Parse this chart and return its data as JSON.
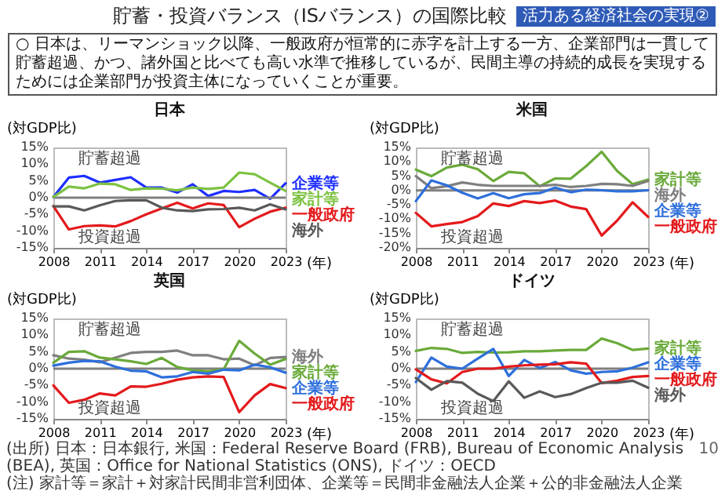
{
  "chart_data": [
    {
      "type": "other",
      "title": "貯蓄・投資バランス（ISバランス）の国際比較",
      "subtitle": "活力ある経済社会の実現②",
      "annotations": [
        "○ 日本は、リーマンショック以降、一般政府が恒常的に赤字を計上する一方、企業部門は一貫して貯蓄超過、かつ、諸外国と比べても高い水準で推移しているが、民間主導の持続的成長を実現するためには企業部門が投資主体になっていくことが重要。",
        "(出所) 日本：日本銀行, 米国：Federal Reserve Board (FRB), Bureau of Economic Analysis (BEA), 英国：Office for National Statistics (ONS), ドイツ：OECD",
        "(注) 家計等＝家計＋対家計民間非営利団体、企業等＝民間非金融法人企業＋公的非金融法人企業",
        "10"
      ]
    },
    {
      "type": "line",
      "title": "日本",
      "ylabel": "(対GDP比)",
      "xlabel": "(年)",
      "x": [
        2008,
        2009,
        2010,
        2011,
        2012,
        2013,
        2014,
        2015,
        2016,
        2017,
        2018,
        2019,
        2020,
        2021,
        2022,
        2023
      ],
      "xlim": [
        2008,
        2023
      ],
      "xticks": [
        2008,
        2011,
        2014,
        2017,
        2020,
        2023
      ],
      "ylim": [
        -15,
        15
      ],
      "yticks": [
        {
          "value": -15,
          "label": "-15%"
        },
        {
          "value": -10,
          "label": "-10%"
        },
        {
          "value": -5,
          "label": "-5%"
        },
        {
          "value": 0,
          "label": "0%"
        },
        {
          "value": 5,
          "label": "5%"
        },
        {
          "value": 10,
          "label": "10%"
        },
        {
          "value": 15,
          "label": "15%"
        }
      ],
      "ref_lines": [
        {
          "axis": "y",
          "value": 0,
          "color": "#808080"
        }
      ],
      "annotations": [
        "貯蓄超過",
        "投資超過"
      ],
      "series": [
        {
          "name": "企業等",
          "color": "#1f2fff",
          "values": [
            0.2,
            6,
            6.5,
            4.5,
            5.3,
            6.1,
            3,
            3,
            1.5,
            4,
            0.5,
            2,
            1.7,
            2.3,
            -0.3,
            4.3
          ]
        },
        {
          "name": "家計等",
          "color": "#7dc242",
          "values": [
            0.2,
            3.3,
            2.8,
            4.2,
            4,
            2.3,
            2.8,
            2.7,
            2.2,
            3,
            2.6,
            3,
            7.5,
            7,
            4.5,
            2
          ]
        },
        {
          "name": "一般政府",
          "color": "#e31a1c",
          "values": [
            -2.5,
            -9.5,
            -8.5,
            -8.3,
            -8.6,
            -7,
            -5,
            -3.2,
            -1.5,
            -3.2,
            -1.7,
            -2.2,
            -8.8,
            -6.3,
            -4.2,
            -3
          ]
        },
        {
          "name": "海外",
          "color": "#595959",
          "values": [
            -2.6,
            -2.6,
            -3.8,
            -2.3,
            -1,
            -0.8,
            -0.8,
            -3,
            -3.8,
            -4,
            -3.5,
            -3.4,
            -3,
            -3.8,
            -2,
            -3.5
          ]
        }
      ]
    },
    {
      "type": "line",
      "title": "米国",
      "ylabel": "(対GDP比)",
      "xlabel": "(年)",
      "x": [
        2008,
        2009,
        2010,
        2011,
        2012,
        2013,
        2014,
        2015,
        2016,
        2017,
        2018,
        2019,
        2020,
        2021,
        2022,
        2023
      ],
      "xlim": [
        2008,
        2023
      ],
      "xticks": [
        2008,
        2011,
        2014,
        2017,
        2020,
        2023
      ],
      "ylim": [
        -20,
        15
      ],
      "yticks": [
        {
          "value": -20,
          "label": "-20%"
        },
        {
          "value": -15,
          "label": "-15%"
        },
        {
          "value": -10,
          "label": "-10%"
        },
        {
          "value": -5,
          "label": "-5%"
        },
        {
          "value": 0,
          "label": "0%"
        },
        {
          "value": 5,
          "label": "5%"
        },
        {
          "value": 10,
          "label": "10%"
        },
        {
          "value": 15,
          "label": "15%"
        }
      ],
      "ref_lines": [
        {
          "axis": "y",
          "value": 0,
          "color": "#808080"
        }
      ],
      "annotations": [
        "貯蓄超過",
        "投資超過"
      ],
      "series": [
        {
          "name": "家計等",
          "color": "#6aaa3a",
          "values": [
            7.3,
            5,
            8,
            9,
            7.4,
            3.3,
            6.5,
            6,
            1.5,
            4.2,
            4.1,
            8.5,
            13.5,
            6.8,
            2.2,
            3.8
          ]
        },
        {
          "name": "海外",
          "color": "#7f7f7f",
          "values": [
            5,
            0.8,
            1.5,
            2.8,
            2,
            1.6,
            1.6,
            1.6,
            1.6,
            2,
            1.2,
            1.6,
            2.3,
            2.2,
            1.6,
            3.3
          ]
        },
        {
          "name": "企業等",
          "color": "#2e6fdb",
          "values": [
            -3.7,
            3.5,
            1.8,
            -0.8,
            -2.8,
            -0.9,
            -2.7,
            -1.3,
            -0.9,
            1,
            -0.6,
            0.3,
            0.1,
            -0.3,
            -0.3,
            0.1
          ]
        },
        {
          "name": "一般政府",
          "color": "#e31a1c",
          "values": [
            -7.8,
            -12.5,
            -11.7,
            -11,
            -8.9,
            -4.5,
            -5.4,
            -3.7,
            -4.4,
            -3.5,
            -5.6,
            -6.5,
            -15.7,
            -10.5,
            -4.1,
            -9.2
          ]
        }
      ]
    },
    {
      "type": "line",
      "title": "英国",
      "ylabel": "(対GDP比)",
      "xlabel": "(年)",
      "x": [
        2008,
        2009,
        2010,
        2011,
        2012,
        2013,
        2014,
        2015,
        2016,
        2017,
        2018,
        2019,
        2020,
        2021,
        2022,
        2023
      ],
      "xlim": [
        2008,
        2023
      ],
      "xticks": [
        2008,
        2011,
        2014,
        2017,
        2020,
        2023
      ],
      "ylim": [
        -15,
        15
      ],
      "yticks": [
        {
          "value": -15,
          "label": "-15%"
        },
        {
          "value": -10,
          "label": "-10%"
        },
        {
          "value": -5,
          "label": "-5%"
        },
        {
          "value": 0,
          "label": "0%"
        },
        {
          "value": 5,
          "label": "5%"
        },
        {
          "value": 10,
          "label": "10%"
        },
        {
          "value": 15,
          "label": "15%"
        }
      ],
      "ref_lines": [
        {
          "axis": "y",
          "value": 0,
          "color": "#808080"
        }
      ],
      "annotations": [
        "貯蓄超過",
        "投資超過"
      ],
      "series": [
        {
          "name": "海外",
          "color": "#7f7f7f",
          "values": [
            4,
            3,
            2.7,
            1.9,
            3.3,
            4.7,
            5,
            5,
            5.4,
            4,
            4,
            2.8,
            3,
            1,
            3.2,
            3.5
          ]
        },
        {
          "name": "家計等",
          "color": "#6aaa3a",
          "values": [
            1.8,
            5,
            5.2,
            3.3,
            2.8,
            2.2,
            1.4,
            3.2,
            0.5,
            -0.5,
            -0.8,
            -0.2,
            8.3,
            4.5,
            1.2,
            2.9
          ]
        },
        {
          "name": "企業等",
          "color": "#2e6fdb",
          "values": [
            0.9,
            1.8,
            2.3,
            2.2,
            0.6,
            -0.6,
            -0.8,
            -2.6,
            -2.3,
            -1,
            -1.5,
            -0.3,
            -0.5,
            1.2,
            0.4,
            -1.2
          ]
        },
        {
          "name": "一般政府",
          "color": "#e31a1c",
          "values": [
            -5,
            -10.2,
            -9.3,
            -7.4,
            -8,
            -5.3,
            -5.4,
            -4.5,
            -3.3,
            -2.6,
            -2.3,
            -2.5,
            -13,
            -8,
            -4.6,
            -5.8
          ]
        }
      ]
    },
    {
      "type": "line",
      "title": "ドイツ",
      "ylabel": "(対GDP比)",
      "xlabel": "(年)",
      "x": [
        2008,
        2009,
        2010,
        2011,
        2012,
        2013,
        2014,
        2015,
        2016,
        2017,
        2018,
        2019,
        2020,
        2021,
        2022,
        2023
      ],
      "xlim": [
        2008,
        2023
      ],
      "xticks": [
        2008,
        2011,
        2014,
        2017,
        2020,
        2023
      ],
      "ylim": [
        -15,
        15
      ],
      "yticks": [
        {
          "value": -15,
          "label": "-15%"
        },
        {
          "value": -10,
          "label": "-10%"
        },
        {
          "value": -5,
          "label": "-5%"
        },
        {
          "value": 0,
          "label": "0%"
        },
        {
          "value": 5,
          "label": "5%"
        },
        {
          "value": 10,
          "label": "10%"
        },
        {
          "value": 15,
          "label": "15%"
        }
      ],
      "ref_lines": [
        {
          "axis": "y",
          "value": 0,
          "color": "#808080"
        }
      ],
      "annotations": [
        "貯蓄超過",
        "投資超過"
      ],
      "series": [
        {
          "name": "家計等",
          "color": "#6aaa3a",
          "values": [
            5.3,
            6.2,
            5.9,
            4.7,
            5,
            4.8,
            4.9,
            5.2,
            5.2,
            5.4,
            5.6,
            5.6,
            9,
            7.6,
            5.6,
            6
          ]
        },
        {
          "name": "企業等",
          "color": "#2e6fdb",
          "values": [
            -4,
            3.3,
            0.6,
            0,
            3,
            5.9,
            -2.2,
            2.6,
            0.2,
            2,
            -0.5,
            -1.5,
            -1,
            -0.8,
            0.3,
            1.9
          ]
        },
        {
          "name": "一般政府",
          "color": "#e31a1c",
          "values": [
            -0.2,
            -3.2,
            -4.4,
            -1,
            0,
            0,
            0.6,
            1,
            1.2,
            1.3,
            1.9,
            1.5,
            -4.3,
            -3.6,
            -2.5,
            -2.2
          ]
        },
        {
          "name": "海外",
          "color": "#595959",
          "values": [
            -2.8,
            -6.3,
            -3.7,
            -4.2,
            -7.5,
            -9.7,
            -3.8,
            -8.7,
            -6.8,
            -8.5,
            -7.6,
            -5.8,
            -4.2,
            -4.2,
            -3.6,
            -5.7
          ]
        }
      ]
    }
  ]
}
